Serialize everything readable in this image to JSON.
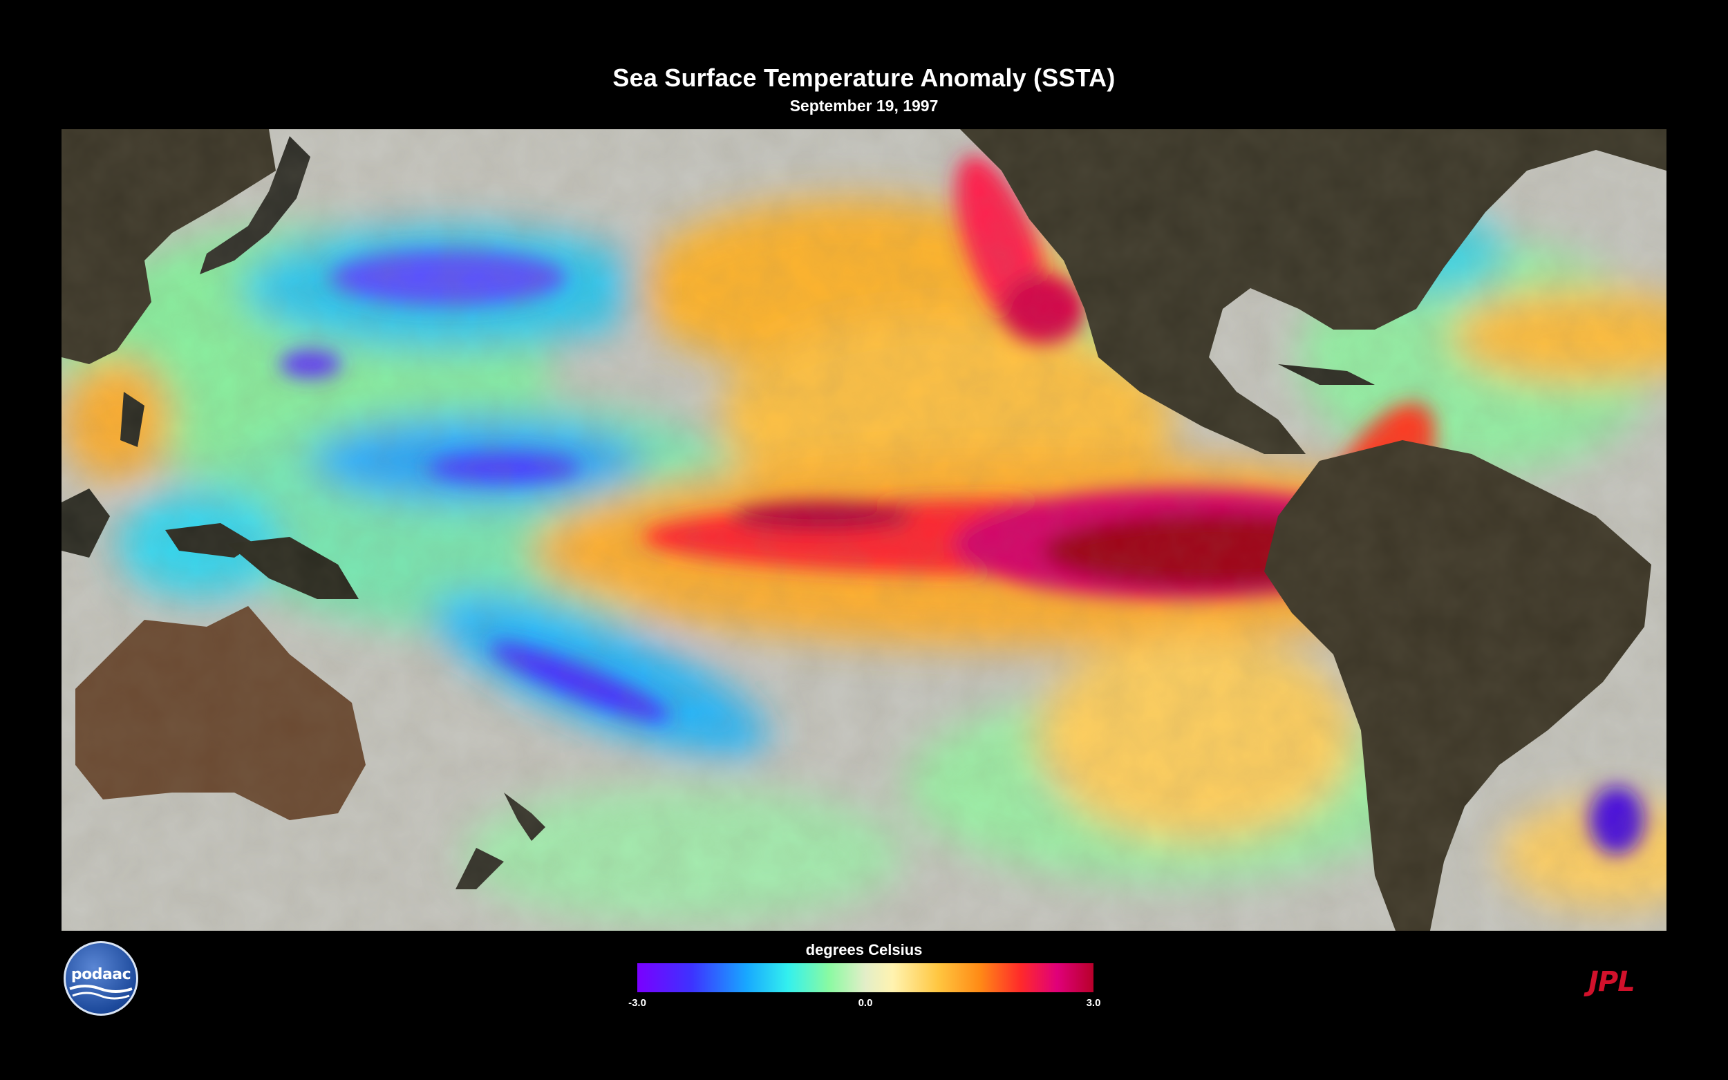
{
  "title": "Sea Surface Temperature Anomaly (SSTA)",
  "subtitle": "September 19, 1997",
  "colorbar": {
    "label": "degrees Celsius",
    "min_label": "-3.0",
    "mid_label": "0.0",
    "max_label": "3.0",
    "min": -3.0,
    "max": 3.0,
    "colors": [
      "#7a00ff",
      "#18a8ff",
      "#33f0ee",
      "#8afaa2",
      "#e3eec8",
      "#ffc640",
      "#ff2a2a",
      "#e0007a",
      "#b8002a"
    ]
  },
  "logos": {
    "left": "podaac",
    "right": "JPL"
  },
  "map": {
    "region": "Pacific Ocean",
    "highlight": "El Niño warm anomaly along the equatorial eastern Pacific",
    "ocean_base_color": "#c7c7c1",
    "land_color": "#3a3526"
  }
}
